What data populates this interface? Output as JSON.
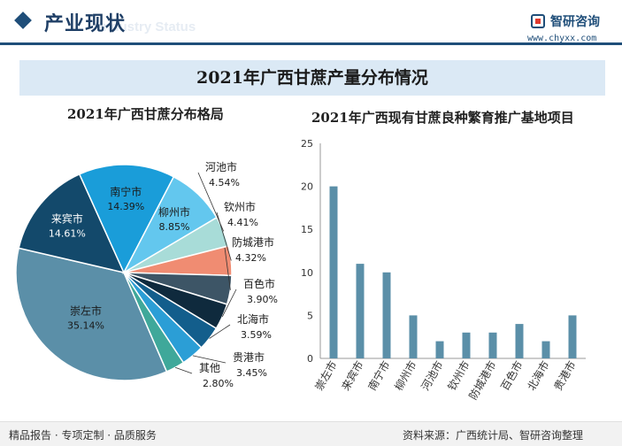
{
  "header": {
    "title": "产业现状",
    "ghost_text": "Industry Status"
  },
  "brand": {
    "name": "智研咨询",
    "url": "www.chyxx.com"
  },
  "banner": {
    "title": "2021年广西甘蔗产量分布情况"
  },
  "footer": {
    "left": "精品报告 · 专项定制 · 品质服务",
    "right": "资料来源：广西统计局、智研咨询整理"
  },
  "colors": {
    "brand_blue": "#1f4e79",
    "bar": "#5b8fa8"
  },
  "chart_data": [
    {
      "type": "pie",
      "title": "2021年广西甘蔗分布格局",
      "slices": [
        {
          "label": "崇左市",
          "value": 35.14,
          "display": "35.14%",
          "color": "#5b8fa8"
        },
        {
          "label": "来宾市",
          "value": 14.61,
          "display": "14.61%",
          "color": "#13496b"
        },
        {
          "label": "南宁市",
          "value": 14.39,
          "display": "14.39%",
          "color": "#1a9dd9"
        },
        {
          "label": "柳州市",
          "value": 8.85,
          "display": "8.85%",
          "color": "#63c7ee"
        },
        {
          "label": "河池市",
          "value": 4.54,
          "display": "4.54%",
          "color": "#a8dcd8"
        },
        {
          "label": "钦州市",
          "value": 4.41,
          "display": "4.41%",
          "color": "#f08c72"
        },
        {
          "label": "防城港市",
          "value": 4.32,
          "display": "4.32%",
          "color": "#3d5566"
        },
        {
          "label": "百色市",
          "value": 3.9,
          "display": "3.90%",
          "color": "#0f2a3d"
        },
        {
          "label": "北海市",
          "value": 3.59,
          "display": "3.59%",
          "color": "#135e8c"
        },
        {
          "label": "贵港市",
          "value": 3.45,
          "display": "3.45%",
          "color": "#2b9ed6"
        },
        {
          "label": "其他",
          "value": 2.8,
          "display": "2.80%",
          "color": "#3fa89a"
        }
      ]
    },
    {
      "type": "bar",
      "title": "2021年广西现有甘蔗良种繁育推广基地项目",
      "categories": [
        "崇左市",
        "来宾市",
        "南宁市",
        "柳州市",
        "河池市",
        "钦州市",
        "防城港市",
        "百色市",
        "北海市",
        "贵港市"
      ],
      "values": [
        20,
        11,
        10,
        5,
        2,
        3,
        3,
        4,
        2,
        5
      ],
      "ylim": [
        0,
        25
      ],
      "yticks": [
        0,
        5,
        10,
        15,
        20,
        25
      ],
      "grid": false
    }
  ]
}
